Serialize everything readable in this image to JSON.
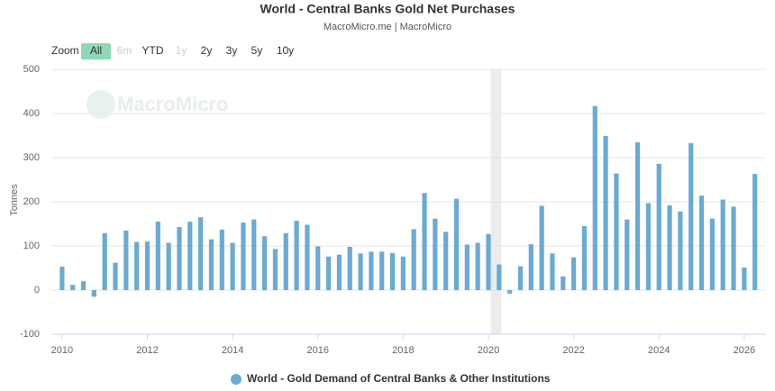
{
  "chart_data": {
    "type": "bar",
    "title": "World - Central Banks Gold Net Purchases",
    "subtitle": "MacroMicro.me | MacroMicro",
    "watermark": "MacroMicro",
    "ylabel": "Tonnes",
    "zoom": {
      "label": "Zoom",
      "buttons": [
        {
          "label": "All",
          "active": true
        },
        {
          "label": "6m",
          "disabled": true
        },
        {
          "label": "YTD"
        },
        {
          "label": "1y",
          "disabled": true
        },
        {
          "label": "2y"
        },
        {
          "label": "3y"
        },
        {
          "label": "5y"
        },
        {
          "label": "10y"
        }
      ]
    },
    "x": [
      2010.0,
      2010.25,
      2010.5,
      2010.75,
      2011.0,
      2011.25,
      2011.5,
      2011.75,
      2012.0,
      2012.25,
      2012.5,
      2012.75,
      2013.0,
      2013.25,
      2013.5,
      2013.75,
      2014.0,
      2014.25,
      2014.5,
      2014.75,
      2015.0,
      2015.25,
      2015.5,
      2015.75,
      2016.0,
      2016.25,
      2016.5,
      2016.75,
      2017.0,
      2017.25,
      2017.5,
      2017.75,
      2018.0,
      2018.25,
      2018.5,
      2018.75,
      2019.0,
      2019.25,
      2019.5,
      2019.75,
      2020.0,
      2020.25,
      2020.5,
      2020.75,
      2021.0,
      2021.25,
      2021.5,
      2021.75,
      2022.0,
      2022.25,
      2022.5,
      2022.75,
      2023.0,
      2023.25,
      2023.5,
      2023.75,
      2024.0,
      2024.25,
      2024.5,
      2024.75,
      2025.0,
      2025.25,
      2025.5,
      2025.75,
      2026.0,
      2026.25
    ],
    "series": [
      {
        "name": "World - Gold Demand of Central Banks & Other Institutions",
        "color": "#6aaad4",
        "values": [
          53,
          12,
          20,
          -15,
          129,
          62,
          135,
          109,
          110,
          155,
          107,
          143,
          155,
          165,
          115,
          137,
          107,
          153,
          160,
          122,
          93,
          129,
          157,
          148,
          99,
          76,
          80,
          98,
          83,
          87,
          87,
          84,
          76,
          138,
          220,
          162,
          132,
          207,
          103,
          107,
          127,
          58,
          -8,
          54,
          104,
          191,
          83,
          31,
          74,
          145,
          417,
          349,
          264,
          160,
          335,
          197,
          286,
          192,
          178,
          333,
          214,
          162,
          205,
          189,
          51,
          263
        ]
      }
    ],
    "band": [
      2020.05,
      2020.3
    ],
    "xlim": [
      2009.77,
      2026.51
    ],
    "xticks": [
      2010,
      2012,
      2014,
      2016,
      2018,
      2020,
      2022,
      2024,
      2026
    ],
    "ylim": [
      -100,
      500
    ],
    "yticks": [
      -100,
      0,
      100,
      200,
      300,
      400,
      500
    ],
    "grid": true
  }
}
